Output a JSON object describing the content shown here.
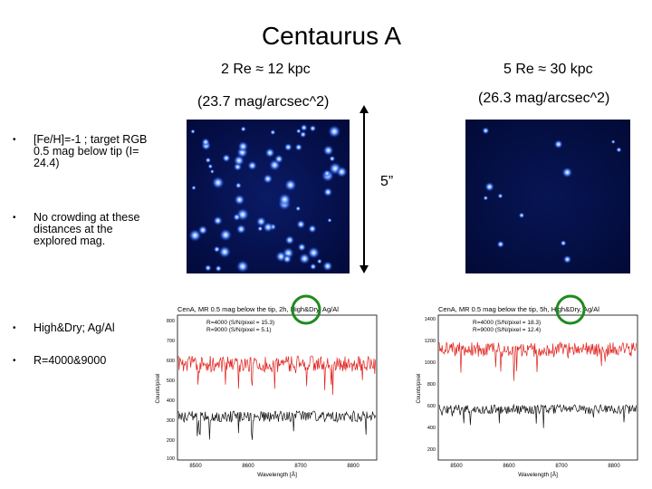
{
  "slide": {
    "title": "Centaurus A",
    "label_left_radius": "2 Re ≈ 12 kpc",
    "label_right_radius": "5 Re ≈ 30 kpc",
    "label_left_sb": "(23.7 mag/arcsec^2)",
    "label_right_sb": "(26.3 mag/arcsec^2)",
    "scale_label": "5”"
  },
  "bullets": [
    "[Fe/H]=-1 ; target RGB 0.5 mag below tip  (I= 24.4)",
    "No crowding at these distances at the explored mag.",
    "High&Dry; Ag/Al",
    "R=4000&9000"
  ],
  "spectra": {
    "left": {
      "title": "CenA, MR 0.5 mag below the tip, 2h, High&Dry, Ag/Al",
      "legend": [
        "R=4000 (S/N/pixel = 15.3)",
        "R=9000 (S/N/pixel = 5.1)"
      ],
      "xlabel": "Wavelength [Å]",
      "ylabel": "Counts/pixel",
      "xticks": [
        "8500",
        "8600",
        "8700",
        "8800"
      ],
      "yticks": [
        "800",
        "700",
        "600",
        "500",
        "400",
        "300",
        "200",
        "100"
      ]
    },
    "right": {
      "title": "CenA, MR 0.5 mag below the tip, 5h, High&Dry, Ag/Al",
      "legend": [
        "R=4000 (S/N/pixel = 18.3)",
        "R=9000 (S/N/pixel = 12.4)"
      ],
      "xlabel": "Wavelength [Å]",
      "ylabel": "Counts/pixel",
      "xticks": [
        "8500",
        "8600",
        "8700",
        "8800"
      ],
      "yticks": [
        "1400",
        "1200",
        "1000",
        "800",
        "600",
        "400",
        "200"
      ]
    }
  },
  "colors": {
    "series_red": "#e0201c",
    "series_black": "#111111",
    "circle_green": "#1f8a1f",
    "image_bg": "#020a3a",
    "star": "#6aa0ff"
  }
}
